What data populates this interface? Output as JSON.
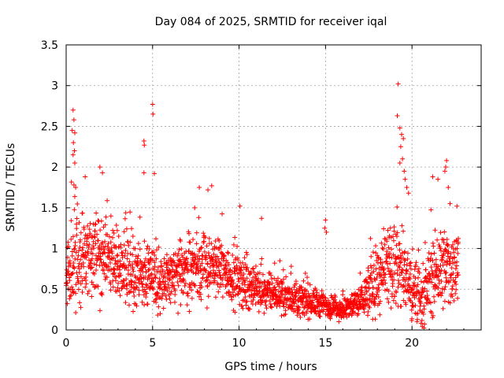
{
  "chart_data": {
    "type": "scatter",
    "title": "Day 084 of 2025, SRMTID for receiver iqal",
    "xlabel": "GPS time / hours",
    "ylabel": "SRMTID / TECUs",
    "xlim": [
      0,
      24
    ],
    "ylim": [
      0,
      3.5
    ],
    "grid": true,
    "xticks": [
      0,
      5,
      10,
      15,
      20
    ],
    "xtick_labels": [
      "0",
      "5",
      "10",
      "15",
      "20"
    ],
    "yticks": [
      0,
      0.5,
      1,
      1.5,
      2,
      2.5,
      3,
      3.5
    ],
    "ytick_labels": [
      "0",
      "0.5",
      "1",
      "1.5",
      "2",
      "2.5",
      "3",
      "3.5"
    ],
    "marker": "+",
    "series": [
      {
        "name": "SRMTID",
        "color": "#ff0000",
        "envelope_hours": [
          0,
          0.5,
          1,
          2,
          3,
          4,
          5,
          6,
          7,
          8,
          9,
          10,
          11,
          12,
          13,
          14,
          15,
          16,
          17,
          18,
          18.5,
          19,
          19.5,
          20,
          20.5,
          21,
          21.5,
          22,
          22.5
        ],
        "envelope_mean_tecu": [
          0.6,
          0.8,
          0.85,
          0.9,
          0.8,
          0.7,
          0.65,
          0.6,
          0.75,
          0.8,
          0.75,
          0.6,
          0.5,
          0.45,
          0.4,
          0.35,
          0.3,
          0.25,
          0.35,
          0.6,
          0.7,
          0.8,
          0.7,
          0.5,
          0.4,
          0.6,
          0.7,
          0.75,
          0.8
        ],
        "envelope_spread_tecu": [
          0.4,
          0.6,
          0.5,
          0.45,
          0.4,
          0.35,
          0.35,
          0.35,
          0.4,
          0.4,
          0.35,
          0.3,
          0.25,
          0.2,
          0.2,
          0.18,
          0.15,
          0.12,
          0.2,
          0.4,
          0.5,
          0.5,
          0.5,
          0.4,
          0.35,
          0.4,
          0.45,
          0.45,
          0.45
        ],
        "spikes": [
          {
            "x": 0.4,
            "y": 2.7
          },
          {
            "x": 0.45,
            "y": 2.58
          },
          {
            "x": 0.35,
            "y": 2.45
          },
          {
            "x": 0.5,
            "y": 2.42
          },
          {
            "x": 0.42,
            "y": 2.3
          },
          {
            "x": 0.48,
            "y": 2.2
          },
          {
            "x": 0.4,
            "y": 2.15
          },
          {
            "x": 0.5,
            "y": 2.05
          },
          {
            "x": 0.45,
            "y": 1.78
          },
          {
            "x": 0.55,
            "y": 1.75
          },
          {
            "x": 1.1,
            "y": 1.88
          },
          {
            "x": 1.95,
            "y": 2.0
          },
          {
            "x": 2.1,
            "y": 1.93
          },
          {
            "x": 4.5,
            "y": 2.32
          },
          {
            "x": 4.52,
            "y": 2.27
          },
          {
            "x": 4.5,
            "y": 1.93
          },
          {
            "x": 5.0,
            "y": 2.77
          },
          {
            "x": 5.02,
            "y": 2.65
          },
          {
            "x": 5.1,
            "y": 1.92
          },
          {
            "x": 7.7,
            "y": 1.75
          },
          {
            "x": 8.2,
            "y": 1.72
          },
          {
            "x": 10.05,
            "y": 1.52
          },
          {
            "x": 11.3,
            "y": 1.37
          },
          {
            "x": 15.0,
            "y": 1.35
          },
          {
            "x": 14.95,
            "y": 1.25
          },
          {
            "x": 15.05,
            "y": 1.2
          },
          {
            "x": 19.2,
            "y": 3.02
          },
          {
            "x": 19.15,
            "y": 2.63
          },
          {
            "x": 19.3,
            "y": 2.48
          },
          {
            "x": 19.4,
            "y": 2.4
          },
          {
            "x": 19.5,
            "y": 2.35
          },
          {
            "x": 19.35,
            "y": 2.25
          },
          {
            "x": 19.45,
            "y": 2.1
          },
          {
            "x": 19.3,
            "y": 2.05
          },
          {
            "x": 19.55,
            "y": 1.95
          },
          {
            "x": 19.6,
            "y": 1.85
          },
          {
            "x": 19.7,
            "y": 1.75
          },
          {
            "x": 19.8,
            "y": 1.68
          },
          {
            "x": 21.2,
            "y": 1.88
          },
          {
            "x": 21.5,
            "y": 1.85
          },
          {
            "x": 22.0,
            "y": 2.08
          },
          {
            "x": 21.95,
            "y": 2.0
          },
          {
            "x": 21.9,
            "y": 1.95
          },
          {
            "x": 22.1,
            "y": 1.75
          },
          {
            "x": 22.2,
            "y": 1.55
          },
          {
            "x": 22.6,
            "y": 1.52
          }
        ]
      }
    ]
  }
}
